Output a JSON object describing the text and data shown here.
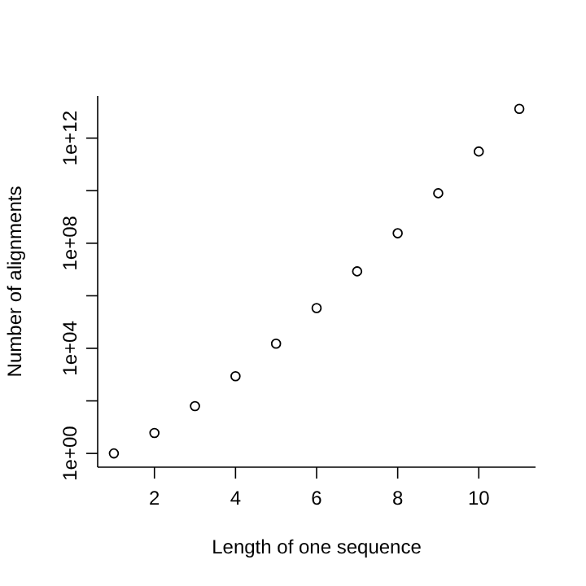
{
  "chart_data": {
    "type": "scatter",
    "xlabel": "Length of one sequence",
    "ylabel": "Number of alignments",
    "x": [
      1,
      2,
      3,
      4,
      5,
      6,
      7,
      8,
      9,
      10,
      11
    ],
    "values": [
      1,
      6,
      63,
      870,
      15000,
      340000,
      8500000,
      240000000,
      8000000000,
      310000000000,
      13000000000000
    ],
    "color": "#000000",
    "marker": "circle",
    "log": "y",
    "grid": false,
    "xlim": [
      0.6,
      11.4
    ],
    "xticks": [
      2,
      4,
      6,
      8,
      10
    ],
    "ylim": [
      0.3,
      40000000000000
    ],
    "yticks": [
      {
        "value": 1,
        "label": "1e+00"
      },
      {
        "value": 100,
        "label": null
      },
      {
        "value": 10000,
        "label": "1e+04"
      },
      {
        "value": 1000000,
        "label": null
      },
      {
        "value": 100000000,
        "label": "1e+08"
      },
      {
        "value": 10000000000,
        "label": null
      },
      {
        "value": 1000000000000,
        "label": "1e+12"
      }
    ]
  }
}
